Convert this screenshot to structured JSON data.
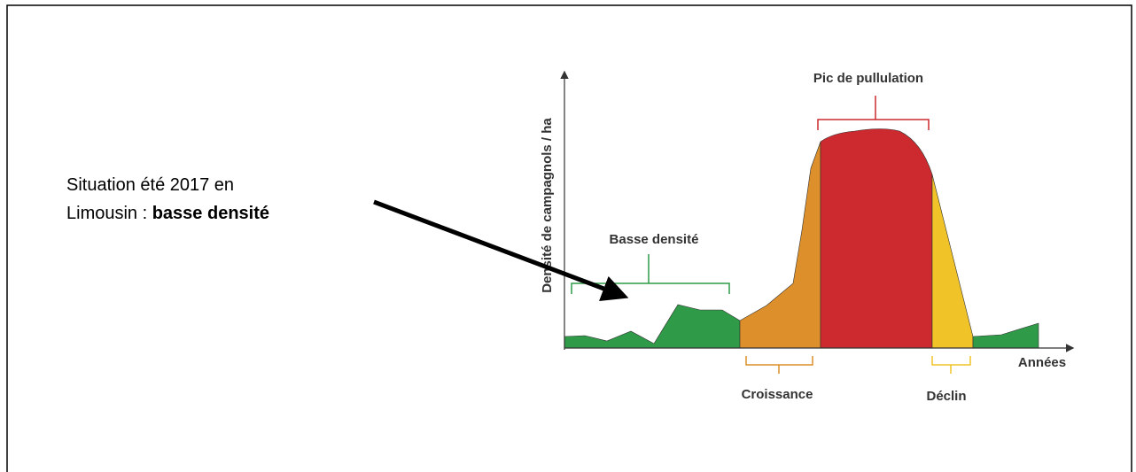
{
  "annotation": {
    "line1": "Situation été 2017 en",
    "line2": "Limousin : ",
    "line2_bold": "basse densité"
  },
  "axes": {
    "y_label": "Densité de campagnols / ha",
    "x_label": "Années"
  },
  "phases": {
    "low": "Basse densité",
    "growth": "Croissance",
    "peak": "Pic de pullulation",
    "decline": "Déclin"
  }
}
